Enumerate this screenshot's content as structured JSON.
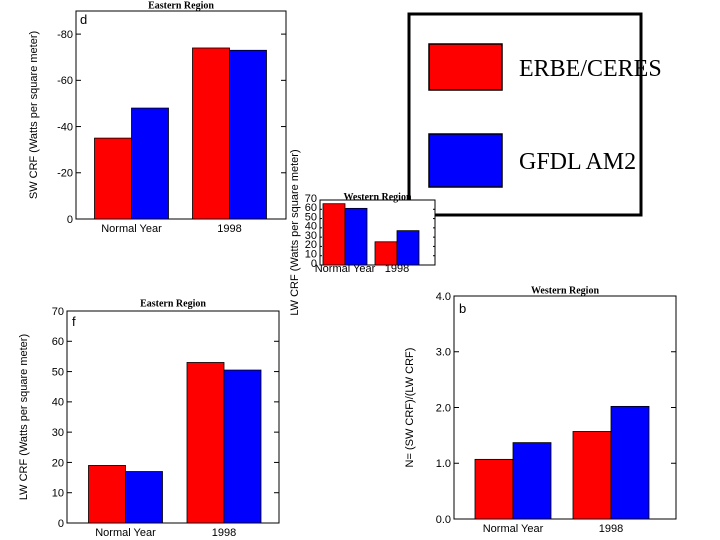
{
  "legend": {
    "items": [
      {
        "label": "ERBE/CERES",
        "color": "#ff0000"
      },
      {
        "label": "GFDL AM2",
        "color": "#0000ff"
      }
    ]
  },
  "chart_data": [
    {
      "id": "d",
      "type": "bar",
      "title": "Eastern Region",
      "panel_label": "d",
      "ylabel": "SW CRF (Watts per square meter)",
      "categories": [
        "Normal Year",
        "1998"
      ],
      "series": [
        {
          "name": "ERBE/CERES",
          "color": "#ff0000",
          "values": [
            -35,
            -74
          ]
        },
        {
          "name": "GFDL AM2",
          "color": "#0000ff",
          "values": [
            -48,
            -73
          ]
        }
      ],
      "ylim": [
        0,
        -90
      ],
      "yticks": [
        0,
        -20,
        -40,
        -60,
        -80
      ],
      "ytick_labels": [
        "0",
        "-20",
        "-40",
        "-60",
        "-80"
      ]
    },
    {
      "id": "inset",
      "type": "bar",
      "title": "Western Region",
      "panel_label": "",
      "ylabel": "LW CRF (Watts per square meter)",
      "categories": [
        "Normal Year",
        "1998"
      ],
      "series": [
        {
          "name": "ERBE/CERES",
          "color": "#ff0000",
          "values": [
            66,
            25
          ]
        },
        {
          "name": "GFDL AM2",
          "color": "#0000ff",
          "values": [
            61,
            37
          ]
        }
      ],
      "ylim": [
        0,
        70
      ],
      "yticks": [
        0,
        10,
        20,
        30,
        40,
        50,
        60,
        70
      ],
      "ytick_labels": [
        "0",
        "10",
        "20",
        "30",
        "40",
        "50",
        "60",
        "70"
      ]
    },
    {
      "id": "f",
      "type": "bar",
      "title": "Eastern Region",
      "panel_label": "f",
      "ylabel": "LW CRF (Watts per square meter)",
      "categories": [
        "Normal Year",
        "1998"
      ],
      "series": [
        {
          "name": "ERBE/CERES",
          "color": "#ff0000",
          "values": [
            19,
            53
          ]
        },
        {
          "name": "GFDL AM2",
          "color": "#0000ff",
          "values": [
            17,
            50.5
          ]
        }
      ],
      "ylim": [
        0,
        70
      ],
      "yticks": [
        0,
        10,
        20,
        30,
        40,
        50,
        60,
        70
      ],
      "ytick_labels": [
        "0",
        "10",
        "20",
        "30",
        "40",
        "50",
        "60",
        "70"
      ]
    },
    {
      "id": "b",
      "type": "bar",
      "title": "Western Region",
      "panel_label": "b",
      "ylabel": "N= (SW CRF)/(LW CRF)",
      "categories": [
        "Normal Year",
        "1998"
      ],
      "series": [
        {
          "name": "ERBE/CERES",
          "color": "#ff0000",
          "values": [
            1.07,
            1.57
          ]
        },
        {
          "name": "GFDL AM2",
          "color": "#0000ff",
          "values": [
            1.37,
            2.02
          ]
        }
      ],
      "ylim": [
        0,
        4
      ],
      "yticks": [
        0,
        1,
        2,
        3,
        4
      ],
      "ytick_labels": [
        "0.0",
        "1.0",
        "2.0",
        "3.0",
        "4.0"
      ]
    }
  ]
}
